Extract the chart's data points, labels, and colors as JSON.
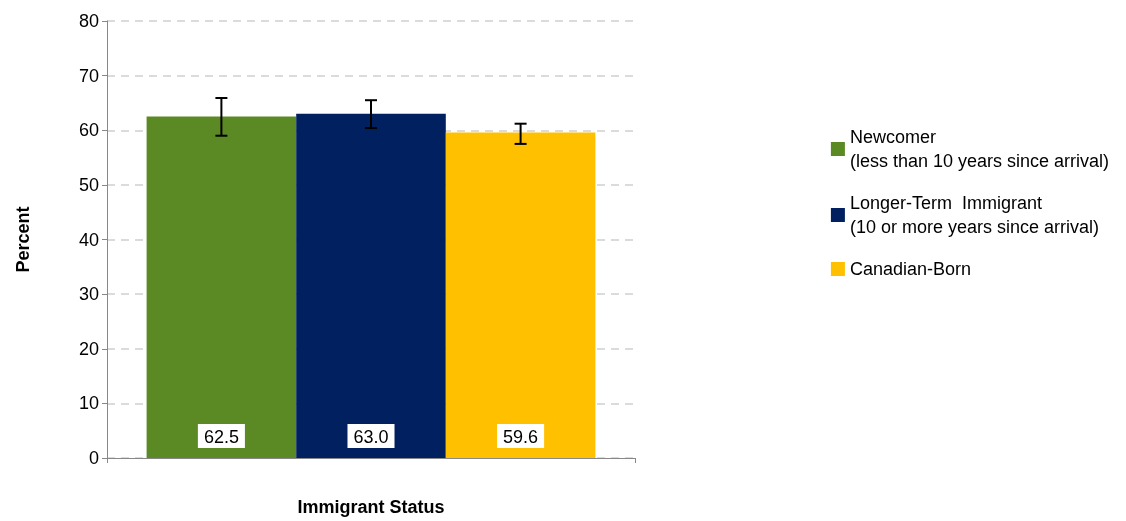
{
  "chart_data": {
    "type": "bar",
    "xlabel": "Immigrant Status",
    "ylabel": "Percent",
    "categories": [
      null
    ],
    "series": [
      {
        "name": "Newcomer\n(less than 10 years since arrival)",
        "color": "#5b8a25",
        "values": [
          62.5
        ],
        "value_labels": [
          "62.5"
        ],
        "errors": [
          [
            59.0,
            65.9
          ]
        ]
      },
      {
        "name": "Longer-Term  Immigrant\n(10 or more years since arrival)",
        "color": "#002060",
        "values": [
          63.0
        ],
        "value_labels": [
          "63.0"
        ],
        "errors": [
          [
            60.4,
            65.5
          ]
        ]
      },
      {
        "name": "Canadian-Born",
        "color": "#ffc000",
        "values": [
          59.6
        ],
        "value_labels": [
          "59.6"
        ],
        "errors": [
          [
            57.5,
            61.2
          ]
        ]
      }
    ],
    "ylim": [
      0,
      80
    ],
    "yticks": [
      0,
      10,
      20,
      30,
      40,
      50,
      60,
      70,
      80
    ],
    "grid": "y",
    "legend": "right"
  }
}
